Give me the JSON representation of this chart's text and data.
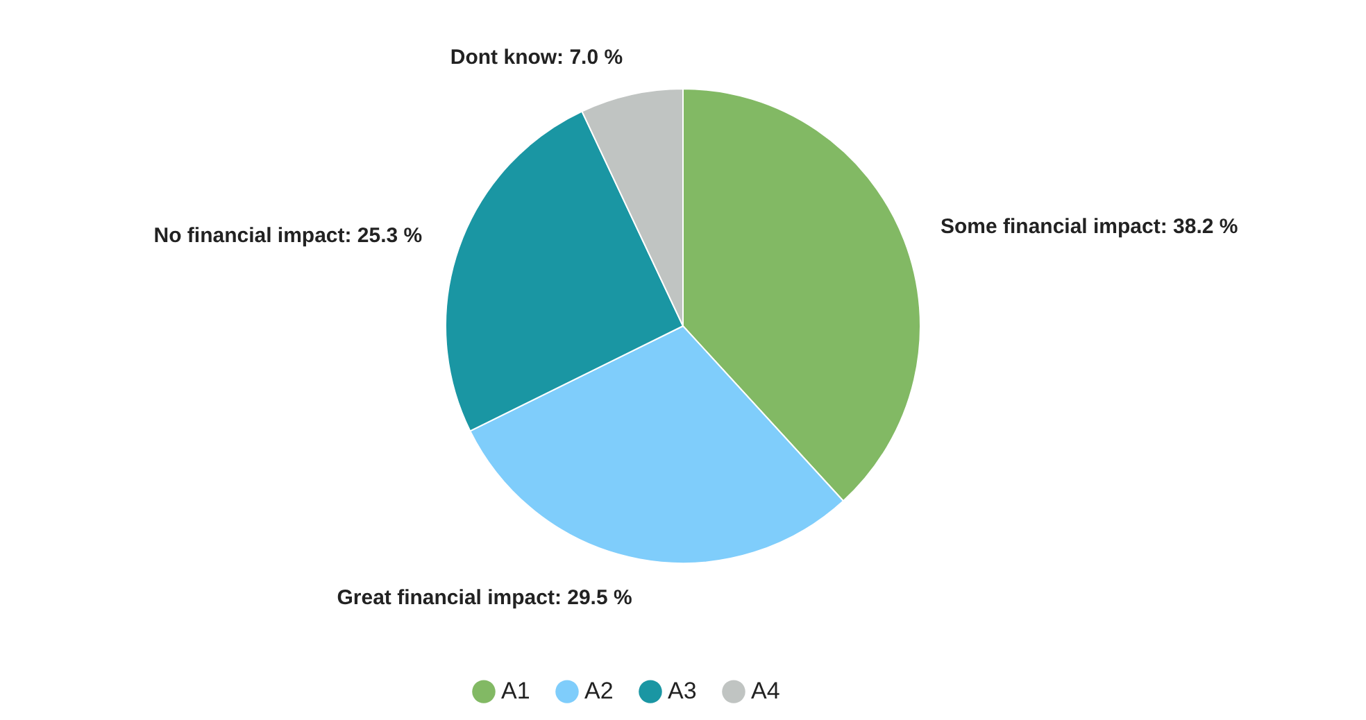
{
  "chart_data": {
    "type": "pie",
    "categories": [
      "A1",
      "A2",
      "A3",
      "A4"
    ],
    "values": [
      38.2,
      29.5,
      25.3,
      7.0
    ],
    "colors": [
      "#82b964",
      "#7fcdfb",
      "#1a96a3",
      "#c0c4c2"
    ],
    "value_labels": [
      "Some financial impact: 38.2 %",
      "Great financial impact: 29.5 %",
      "No financial impact: 25.3 %",
      "Dont know: 7.0 %"
    ],
    "legend": "bottom"
  }
}
